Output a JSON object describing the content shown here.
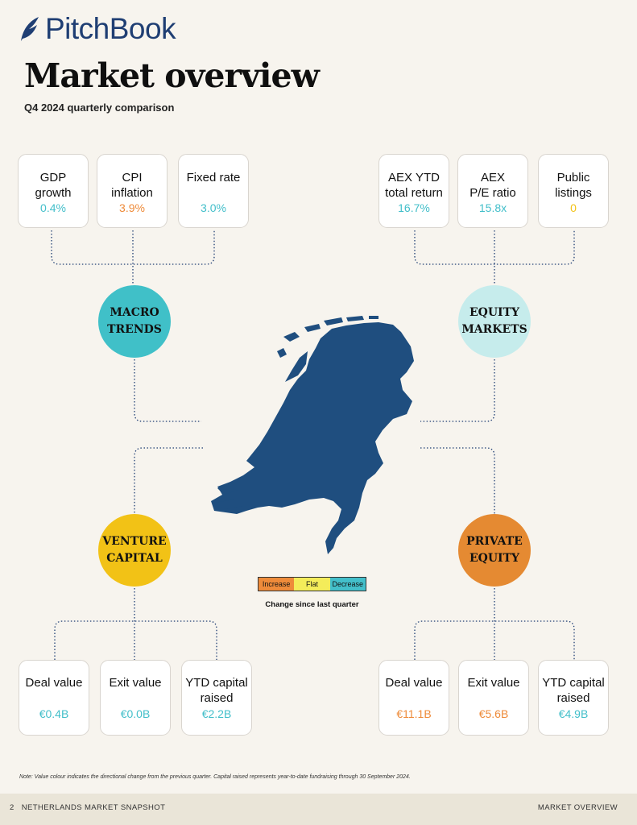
{
  "header": {
    "brand": "PitchBook",
    "title": "Market overview",
    "subtitle": "Q4 2024 quarterly comparison"
  },
  "colors": {
    "increase": "#ee8b3a",
    "flat": "#f2c216",
    "decrease": "#43bfca",
    "brand": "#1f3e73",
    "map": "#1f4e7f"
  },
  "macro": {
    "label_line1": "MACRO",
    "label_line2": "TRENDS",
    "cards": [
      {
        "line1": "GDP",
        "line2": "growth",
        "value": "0.4%",
        "color": "#43bfca"
      },
      {
        "line1": "CPI",
        "line2": "inflation",
        "value": "3.9%",
        "color": "#ee8b3a"
      },
      {
        "line1": "Fixed rate",
        "line2": "",
        "value": "3.0%",
        "color": "#43bfca"
      }
    ]
  },
  "equity": {
    "label_line1": "EQUITY",
    "label_line2": "MARKETS",
    "cards": [
      {
        "line1": "AEX YTD",
        "line2": "total return",
        "value": "16.7%",
        "color": "#43bfca"
      },
      {
        "line1": "AEX",
        "line2": "P/E ratio",
        "value": "15.8x",
        "color": "#43bfca"
      },
      {
        "line1": "Public",
        "line2": "listings",
        "value": "0",
        "color": "#f2c216"
      }
    ]
  },
  "venture": {
    "label_line1": "VENTURE",
    "label_line2": "CAPITAL",
    "cards": [
      {
        "line1": "Deal value",
        "line2": "",
        "value": "€0.4B",
        "color": "#43bfca"
      },
      {
        "line1": "Exit value",
        "line2": "",
        "value": "€0.0B",
        "color": "#43bfca"
      },
      {
        "line1": "YTD capital",
        "line2": "raised",
        "value": "€2.2B",
        "color": "#43bfca"
      }
    ]
  },
  "private": {
    "label_line1": "PRIVATE",
    "label_line2": "EQUITY",
    "cards": [
      {
        "line1": "Deal value",
        "line2": "",
        "value": "€11.1B",
        "color": "#ee8b3a"
      },
      {
        "line1": "Exit value",
        "line2": "",
        "value": "€5.6B",
        "color": "#ee8b3a"
      },
      {
        "line1": "YTD capital",
        "line2": "raised",
        "value": "€4.9B",
        "color": "#43bfca"
      }
    ]
  },
  "legend": {
    "increase": "Increase",
    "flat": "Flat",
    "decrease": "Decrease",
    "caption": "Change since last quarter"
  },
  "note": "Note: Value colour indicates the directional change from the previous quarter. Capital raised represents year-to-date fundraising through 30 September 2024.",
  "footer": {
    "left": "2   NETHERLANDS MARKET SNAPSHOT",
    "right": "MARKET OVERVIEW"
  }
}
